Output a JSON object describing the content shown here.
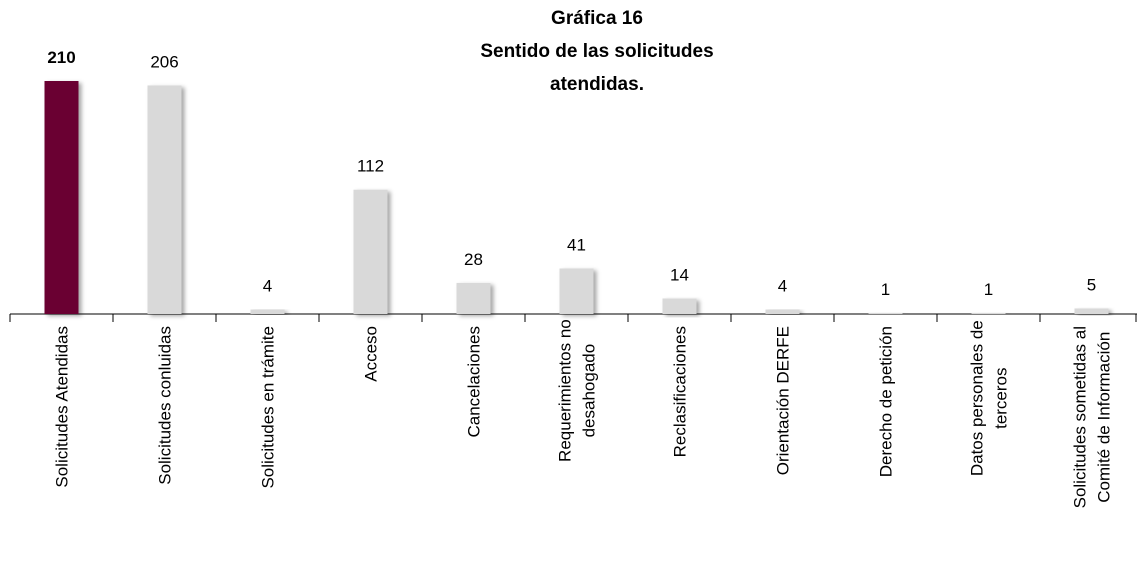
{
  "chart_data": {
    "type": "bar",
    "title": [
      "Gráfica 16",
      "Sentido de las solicitudes",
      "atendidas."
    ],
    "categories": [
      "Solicitudes Atendidas",
      "Solicitudes conluidas",
      "Solicitudes en trámite",
      "Acceso",
      "Cancelaciones",
      "Requerimientos no desahogado",
      "Reclasificaciones",
      "Orientación DERFE",
      "Derecho de petición",
      "Datos personales de terceros",
      "Solicitudes sometidas al Comité de Información"
    ],
    "values": [
      210,
      206,
      4,
      112,
      28,
      41,
      14,
      4,
      1,
      1,
      5
    ],
    "colors": [
      "#6b0030",
      "#d9d9d9",
      "#d9d9d9",
      "#d9d9d9",
      "#d9d9d9",
      "#d9d9d9",
      "#d9d9d9",
      "#d9d9d9",
      "#d9d9d9",
      "#d9d9d9",
      "#d9d9d9"
    ],
    "ylim": [
      0,
      210
    ]
  }
}
